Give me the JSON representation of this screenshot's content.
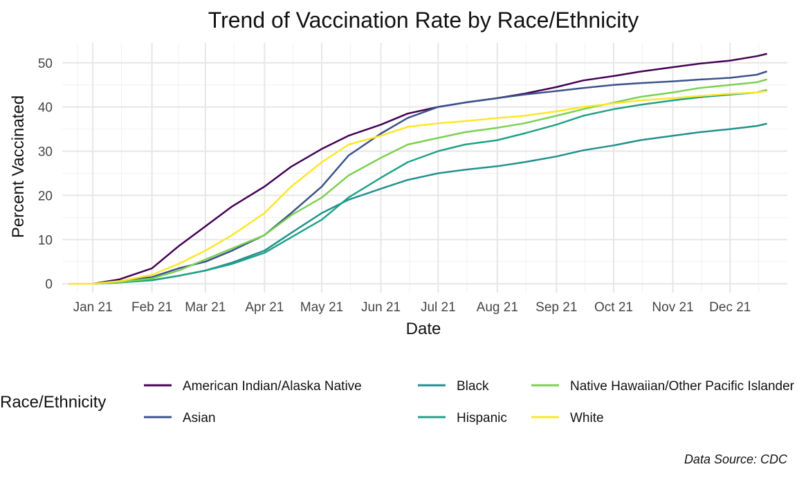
{
  "chart_data": {
    "type": "line",
    "title": "Trend of Vaccination Rate by Race/Ethnicity",
    "xlabel": "Date",
    "ylabel": "Percent Vaccinated",
    "x_tick_labels": [
      "Jan 21",
      "Feb 21",
      "Mar 21",
      "Apr 21",
      "May 21",
      "Jun 21",
      "Jul 21",
      "Aug 21",
      "Sep 21",
      "Oct 21",
      "Nov 21",
      "Dec 21"
    ],
    "x_tick_dates": [
      "2021-01-01",
      "2021-02-01",
      "2021-03-01",
      "2021-04-01",
      "2021-05-01",
      "2021-06-01",
      "2021-07-01",
      "2021-08-01",
      "2021-09-01",
      "2021-10-01",
      "2021-11-01",
      "2021-12-01"
    ],
    "xlim": [
      "2020-12-16",
      "2021-12-31"
    ],
    "ylim": [
      -2,
      54.5
    ],
    "y_ticks": [
      0,
      10,
      20,
      30,
      40,
      50
    ],
    "grid": true,
    "legend_title": "Race/Ethnicity",
    "legend_position": "bottom",
    "caption": "Data Source: CDC",
    "x": [
      "2020-12-20",
      "2021-01-01",
      "2021-01-15",
      "2021-02-01",
      "2021-02-15",
      "2021-03-01",
      "2021-03-15",
      "2021-04-01",
      "2021-04-15",
      "2021-05-01",
      "2021-05-15",
      "2021-06-01",
      "2021-06-15",
      "2021-07-01",
      "2021-07-15",
      "2021-08-01",
      "2021-08-15",
      "2021-09-01",
      "2021-09-15",
      "2021-10-01",
      "2021-10-15",
      "2021-11-01",
      "2021-11-15",
      "2021-12-01",
      "2021-12-15",
      "2021-12-20"
    ],
    "series": [
      {
        "name": "American Indian/Alaska Native",
        "color": "#440154",
        "values": [
          0,
          0,
          1.0,
          3.5,
          8.5,
          13.0,
          17.5,
          22.0,
          26.5,
          30.5,
          33.5,
          36.0,
          38.5,
          40.0,
          41.0,
          42.0,
          43.0,
          44.5,
          46.0,
          47.0,
          48.0,
          49.0,
          49.8,
          50.5,
          51.5,
          52.0
        ]
      },
      {
        "name": "Asian",
        "color": "#3B528B",
        "values": [
          0,
          0,
          0.6,
          1.5,
          3.5,
          5.0,
          7.5,
          11.0,
          16.0,
          22.0,
          29.0,
          34.0,
          37.5,
          40.0,
          41.0,
          42.0,
          42.8,
          43.6,
          44.3,
          45.0,
          45.4,
          45.8,
          46.2,
          46.6,
          47.3,
          48.0
        ]
      },
      {
        "name": "Black",
        "color": "#21908D",
        "values": [
          0,
          0,
          0.3,
          0.8,
          1.8,
          3.0,
          4.8,
          7.5,
          11.5,
          16.0,
          19.0,
          21.5,
          23.5,
          25.0,
          25.8,
          26.6,
          27.5,
          28.8,
          30.2,
          31.3,
          32.5,
          33.5,
          34.3,
          35.0,
          35.7,
          36.2
        ]
      },
      {
        "name": "Hispanic",
        "color": "#1FA187",
        "values": [
          0,
          0,
          0.3,
          0.8,
          1.8,
          3.0,
          4.5,
          7.0,
          10.5,
          14.5,
          19.5,
          24.0,
          27.5,
          30.0,
          31.5,
          32.5,
          34.0,
          36.0,
          38.0,
          39.5,
          40.5,
          41.5,
          42.2,
          42.8,
          43.3,
          43.8
        ]
      },
      {
        "name": "Native Hawaiian/Other Pacific Islander",
        "color": "#7AD151",
        "values": [
          0,
          0,
          0.4,
          1.2,
          3.0,
          5.5,
          8.0,
          11.0,
          15.5,
          19.5,
          24.5,
          28.5,
          31.5,
          33.0,
          34.3,
          35.3,
          36.3,
          38.0,
          39.5,
          41.0,
          42.3,
          43.3,
          44.3,
          45.0,
          45.6,
          46.2
        ]
      },
      {
        "name": "White",
        "color": "#FDE725",
        "values": [
          0,
          0,
          0.6,
          2.0,
          4.5,
          7.5,
          11.0,
          16.0,
          22.0,
          27.5,
          31.5,
          33.5,
          35.5,
          36.3,
          36.8,
          37.5,
          38.0,
          39.0,
          40.0,
          40.8,
          41.5,
          42.0,
          42.5,
          43.0,
          43.3,
          43.6
        ]
      }
    ]
  }
}
